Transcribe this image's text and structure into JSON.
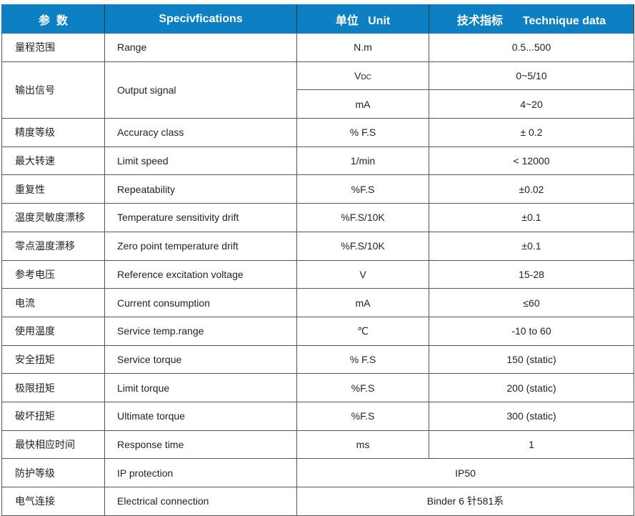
{
  "header": {
    "param_cn": "参  数",
    "spec": "Specivfications",
    "unit_cn": "单位",
    "unit_en": "Unit",
    "data_cn": "技术指标",
    "data_en": "Technique data"
  },
  "colors": {
    "header_bg": "#0d80c4",
    "header_text": "#ffffff"
  },
  "rows": [
    {
      "cn": "量程范围",
      "en": "Range",
      "unit": "N.m",
      "value": "0.5...500"
    },
    {
      "cn": "输出信号",
      "en": "Output signal",
      "unit": "V",
      "unit_sub": "DC",
      "value": "0~5/10",
      "unit2": "mA",
      "value2": "4~20"
    },
    {
      "cn": "精度等级",
      "en": "Accuracy class",
      "unit": "% F.S",
      "value": "± 0.2"
    },
    {
      "cn": "最大转速",
      "en": "Limit speed",
      "unit": "1/min",
      "value": "< 12000"
    },
    {
      "cn": "重复性",
      "en": "Repeatability",
      "unit": "%F.S",
      "value": "±0.02"
    },
    {
      "cn": "温度灵敏度漂移",
      "en": "Temperature sensitivity drift",
      "unit": "%F.S/10K",
      "value": "±0.1"
    },
    {
      "cn": "零点温度漂移",
      "en": "Zero point temperature drift",
      "unit": "%F.S/10K",
      "value": "±0.1"
    },
    {
      "cn": "参考电压",
      "en": "Reference excitation voltage",
      "unit": "V",
      "value": "15-28"
    },
    {
      "cn": "电流",
      "en": "Current consumption",
      "unit": "mA",
      "value": "≤60"
    },
    {
      "cn": "使用温度",
      "en": "Service temp.range",
      "unit": "℃",
      "value": "-10 to 60"
    },
    {
      "cn": "安全扭矩",
      "en": "Service torque",
      "unit": "% F.S",
      "value": "150 (static)"
    },
    {
      "cn": "极限扭矩",
      "en": "Limit torque",
      "unit": "%F.S",
      "value": "200 (static)"
    },
    {
      "cn": "破坏扭矩",
      "en": "Ultimate torque",
      "unit": "%F.S",
      "value": "300 (static)"
    },
    {
      "cn": "最快相应时间",
      "en": "Response time",
      "unit": "ms",
      "value": "1"
    },
    {
      "cn": "防护等级",
      "en": "IP protection",
      "merged": "IP50"
    },
    {
      "cn": "电气连接",
      "en": "Electrical connection",
      "merged": "Binder 6 针581系"
    }
  ]
}
